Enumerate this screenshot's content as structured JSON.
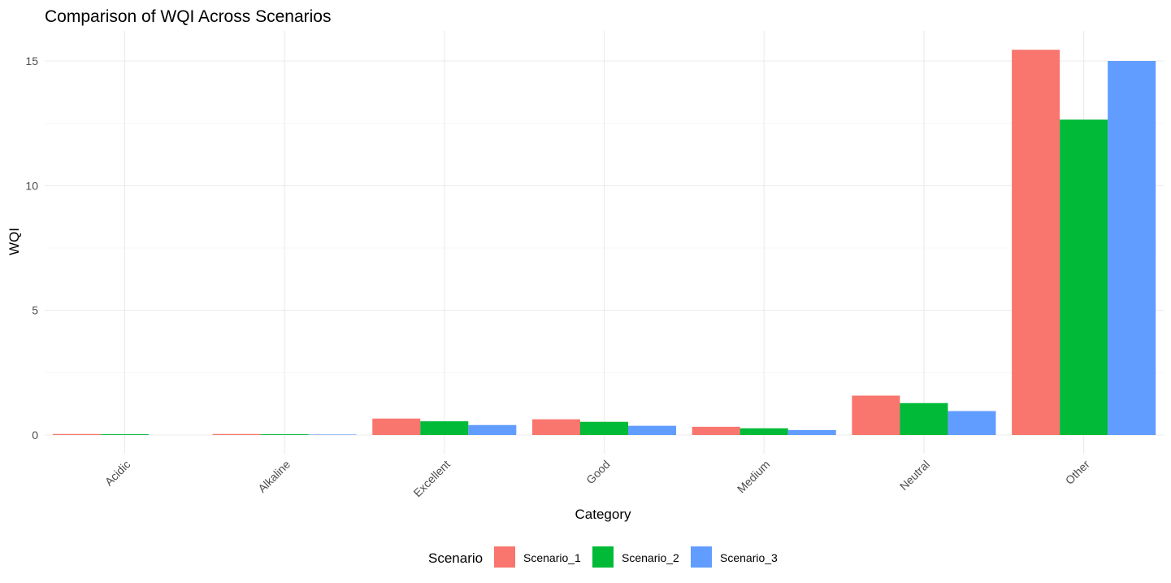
{
  "chart_data": {
    "type": "bar",
    "title": "Comparison of WQI Across Scenarios",
    "xlabel": "Category",
    "ylabel": "WQI",
    "categories": [
      "Acidic",
      "Alkaline",
      "Excellent",
      "Good",
      "Medium",
      "Neutral",
      "Other"
    ],
    "series": [
      {
        "name": "Scenario_1",
        "color": "#F8766D",
        "values": [
          0.04,
          0.04,
          0.66,
          0.63,
          0.33,
          1.58,
          15.45
        ]
      },
      {
        "name": "Scenario_2",
        "color": "#00BA38",
        "values": [
          0.03,
          0.03,
          0.55,
          0.53,
          0.27,
          1.28,
          12.65
        ]
      },
      {
        "name": "Scenario_3",
        "color": "#619CFF",
        "values": [
          0.0,
          0.02,
          0.4,
          0.37,
          0.2,
          0.96,
          15.0
        ]
      }
    ],
    "yticks": [
      0,
      5,
      10,
      15
    ],
    "ylim": [
      0,
      16.2
    ],
    "grid": true,
    "legend": {
      "title": "Scenario",
      "position": "bottom"
    }
  }
}
